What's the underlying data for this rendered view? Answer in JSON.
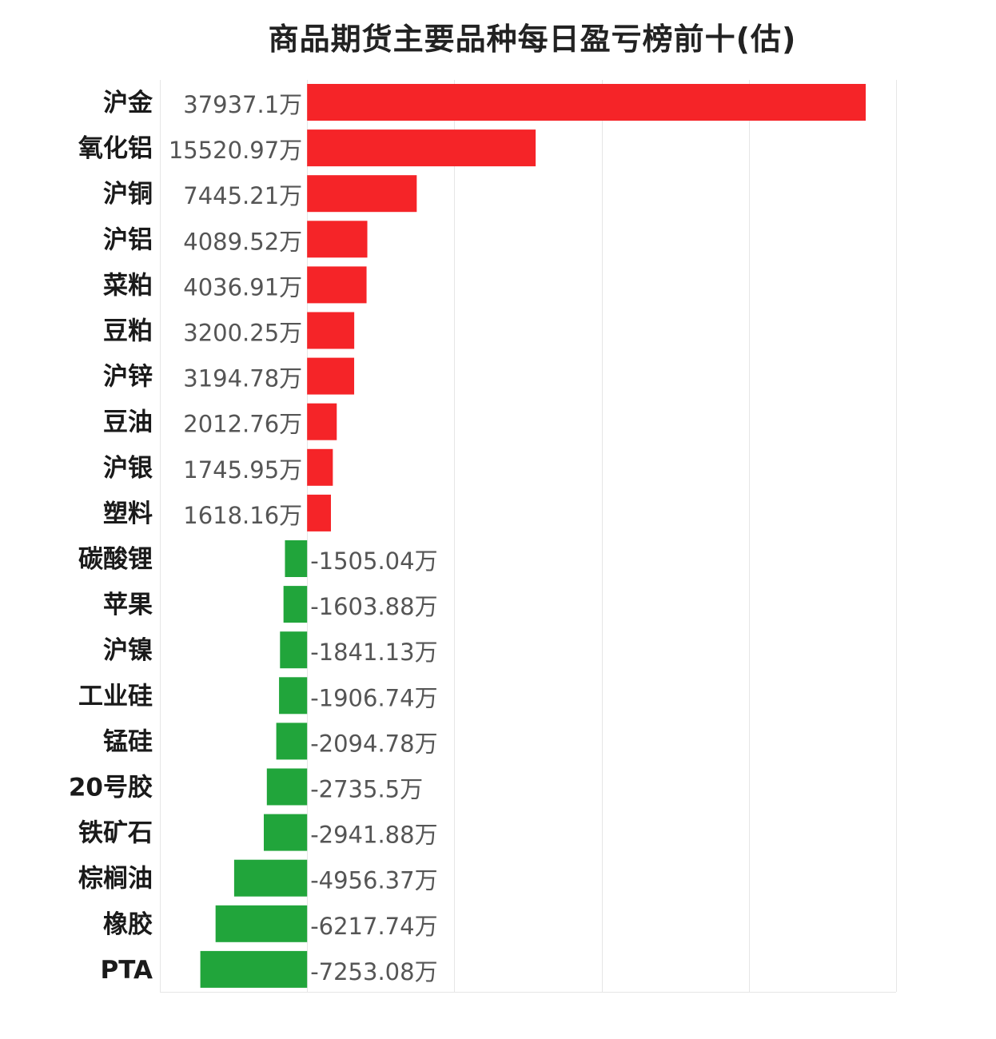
{
  "chart_data": {
    "type": "bar",
    "orientation": "horizontal",
    "title": "商品期货主要品种每日盈亏榜前十(估)",
    "unit_suffix": "万",
    "grid": "vertical",
    "colors": {
      "positive": "#f52428",
      "negative": "#21a53b",
      "grid": "#e6e6e6"
    },
    "categories": [
      "沪金",
      "氧化铝",
      "沪铜",
      "沪铝",
      "菜粕",
      "豆粕",
      "沪锌",
      "豆油",
      "沪银",
      "塑料",
      "碳酸锂",
      "苹果",
      "沪镍",
      "工业硅",
      "锰硅",
      "20号胶",
      "铁矿石",
      "棕榈油",
      "橡胶",
      "PTA"
    ],
    "values": [
      37937.1,
      15520.97,
      7445.21,
      4089.52,
      4036.91,
      3200.25,
      3194.78,
      2012.76,
      1745.95,
      1618.16,
      -1505.04,
      -1603.88,
      -1841.13,
      -1906.74,
      -2094.78,
      -2735.5,
      -2941.88,
      -4956.37,
      -6217.74,
      -7253.08
    ],
    "value_labels": [
      "37937.1万",
      "15520.97万",
      "7445.21万",
      "4089.52万",
      "4036.91万",
      "3200.25万",
      "3194.78万",
      "2012.76万",
      "1745.95万",
      "1618.16万",
      "-1505.04万",
      "-1603.88万",
      "-1841.13万",
      "-1906.74万",
      "-2094.78万",
      "-2735.5万",
      "-2941.88万",
      "-4956.37万",
      "-6217.74万",
      "-7253.08万"
    ],
    "xlim": [
      -10000,
      40000
    ]
  }
}
